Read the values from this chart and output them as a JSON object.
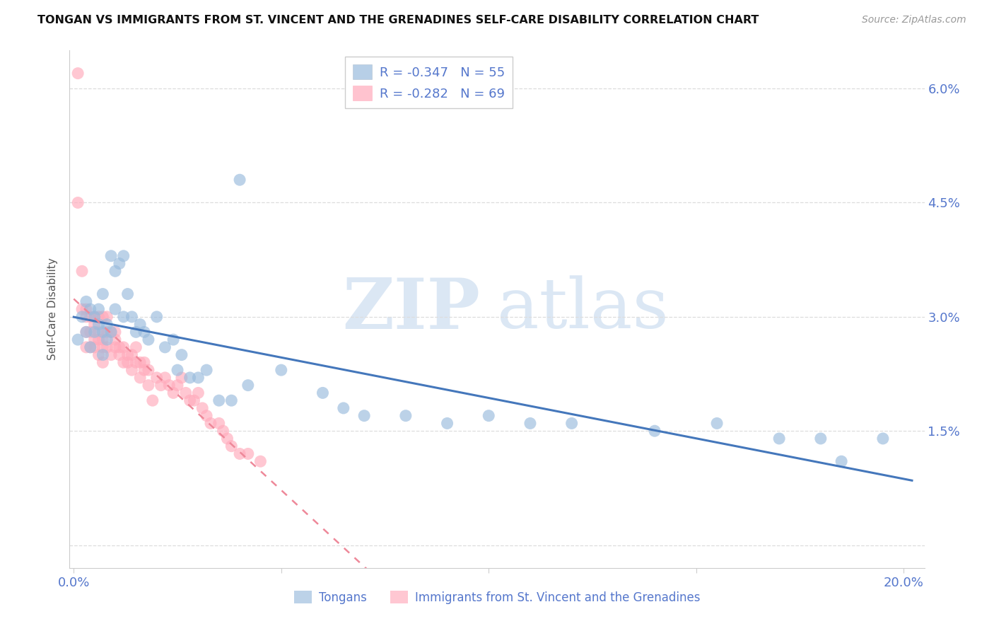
{
  "title": "TONGAN VS IMMIGRANTS FROM ST. VINCENT AND THE GRENADINES SELF-CARE DISABILITY CORRELATION CHART",
  "source": "Source: ZipAtlas.com",
  "ylabel": "Self-Care Disability",
  "color_blue": "#99BBDD",
  "color_pink": "#FFAABB",
  "color_line_blue": "#4477BB",
  "color_line_pink": "#EE8899",
  "color_axis_text": "#5577CC",
  "legend_r1": "-0.347",
  "legend_n1": "55",
  "legend_r2": "-0.282",
  "legend_n2": "69",
  "xlim": [
    -0.001,
    0.205
  ],
  "ylim": [
    -0.003,
    0.065
  ],
  "yticks": [
    0.0,
    0.015,
    0.03,
    0.045,
    0.06
  ],
  "ytick_labels": [
    "",
    "1.5%",
    "3.0%",
    "4.5%",
    "6.0%"
  ],
  "xticks": [
    0.0,
    0.05,
    0.1,
    0.15,
    0.2
  ],
  "xtick_labels": [
    "0.0%",
    "",
    "",
    "",
    "20.0%"
  ],
  "blue_x": [
    0.001,
    0.002,
    0.003,
    0.003,
    0.004,
    0.004,
    0.005,
    0.005,
    0.006,
    0.006,
    0.007,
    0.007,
    0.007,
    0.008,
    0.008,
    0.009,
    0.009,
    0.01,
    0.01,
    0.011,
    0.012,
    0.012,
    0.013,
    0.014,
    0.015,
    0.016,
    0.017,
    0.018,
    0.02,
    0.022,
    0.024,
    0.025,
    0.026,
    0.028,
    0.03,
    0.032,
    0.035,
    0.038,
    0.04,
    0.042,
    0.05,
    0.06,
    0.065,
    0.07,
    0.08,
    0.09,
    0.1,
    0.11,
    0.12,
    0.14,
    0.155,
    0.17,
    0.18,
    0.185,
    0.195
  ],
  "blue_y": [
    0.027,
    0.03,
    0.028,
    0.032,
    0.031,
    0.026,
    0.03,
    0.028,
    0.029,
    0.031,
    0.025,
    0.028,
    0.033,
    0.027,
    0.029,
    0.028,
    0.038,
    0.031,
    0.036,
    0.037,
    0.03,
    0.038,
    0.033,
    0.03,
    0.028,
    0.029,
    0.028,
    0.027,
    0.03,
    0.026,
    0.027,
    0.023,
    0.025,
    0.022,
    0.022,
    0.023,
    0.019,
    0.019,
    0.048,
    0.021,
    0.023,
    0.02,
    0.018,
    0.017,
    0.017,
    0.016,
    0.017,
    0.016,
    0.016,
    0.015,
    0.016,
    0.014,
    0.014,
    0.011,
    0.014
  ],
  "pink_x": [
    0.001,
    0.001,
    0.002,
    0.002,
    0.003,
    0.003,
    0.003,
    0.003,
    0.004,
    0.004,
    0.004,
    0.005,
    0.005,
    0.005,
    0.005,
    0.006,
    0.006,
    0.006,
    0.006,
    0.007,
    0.007,
    0.007,
    0.007,
    0.008,
    0.008,
    0.008,
    0.009,
    0.009,
    0.01,
    0.01,
    0.01,
    0.011,
    0.011,
    0.012,
    0.012,
    0.013,
    0.013,
    0.014,
    0.014,
    0.015,
    0.015,
    0.016,
    0.016,
    0.017,
    0.017,
    0.018,
    0.018,
    0.019,
    0.02,
    0.021,
    0.022,
    0.023,
    0.024,
    0.025,
    0.026,
    0.027,
    0.028,
    0.029,
    0.03,
    0.031,
    0.032,
    0.033,
    0.035,
    0.036,
    0.037,
    0.038,
    0.04,
    0.042,
    0.045
  ],
  "pink_y": [
    0.062,
    0.045,
    0.036,
    0.031,
    0.031,
    0.03,
    0.028,
    0.026,
    0.03,
    0.028,
    0.026,
    0.029,
    0.027,
    0.03,
    0.026,
    0.028,
    0.03,
    0.027,
    0.025,
    0.027,
    0.03,
    0.026,
    0.024,
    0.028,
    0.03,
    0.026,
    0.028,
    0.025,
    0.028,
    0.027,
    0.026,
    0.025,
    0.026,
    0.026,
    0.024,
    0.024,
    0.025,
    0.025,
    0.023,
    0.026,
    0.024,
    0.024,
    0.022,
    0.024,
    0.023,
    0.021,
    0.023,
    0.019,
    0.022,
    0.021,
    0.022,
    0.021,
    0.02,
    0.021,
    0.022,
    0.02,
    0.019,
    0.019,
    0.02,
    0.018,
    0.017,
    0.016,
    0.016,
    0.015,
    0.014,
    0.013,
    0.012,
    0.012,
    0.011
  ]
}
